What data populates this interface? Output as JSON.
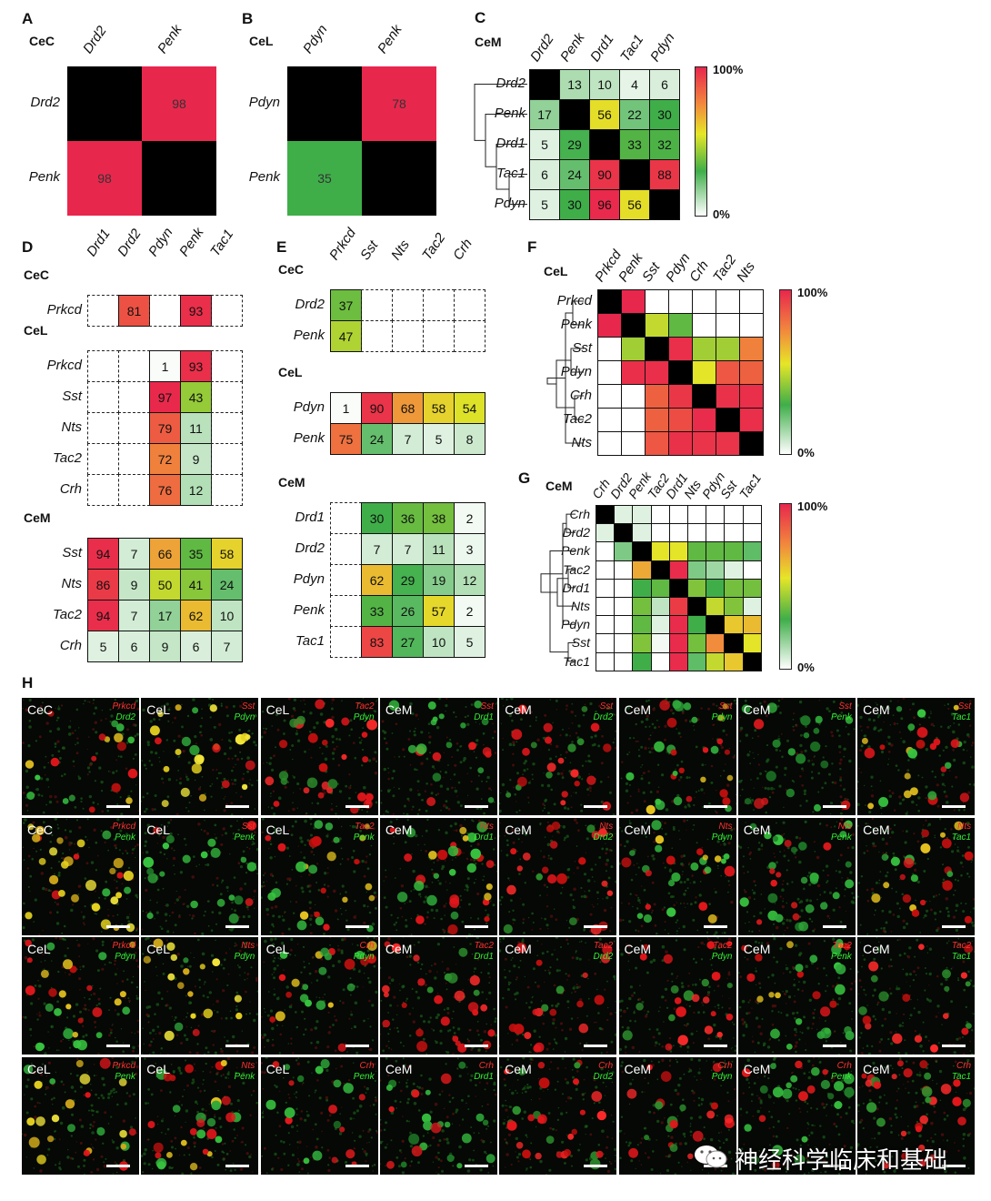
{
  "panels": {
    "A": {
      "label": "A",
      "region": "CeC",
      "genes": [
        "Drd2",
        "Penk"
      ],
      "matrix": [
        [
          null,
          98
        ],
        [
          98,
          null
        ]
      ]
    },
    "B": {
      "label": "B",
      "region": "CeL",
      "genes": [
        "Pdyn",
        "Penk"
      ],
      "matrix": [
        [
          null,
          78
        ],
        [
          35,
          null
        ]
      ]
    },
    "C": {
      "label": "C",
      "region": "CeM",
      "genes": [
        "Drd2",
        "Penk",
        "Drd1",
        "Tac1",
        "Pdyn"
      ],
      "matrix": [
        [
          null,
          13,
          10,
          4,
          6
        ],
        [
          17,
          null,
          56,
          22,
          30
        ],
        [
          5,
          29,
          null,
          33,
          32
        ],
        [
          6,
          24,
          90,
          null,
          88
        ],
        [
          5,
          30,
          96,
          56,
          null
        ]
      ]
    },
    "D": {
      "label": "D",
      "cols": [
        "Drd1",
        "Drd2",
        "Pdyn",
        "Penk",
        "Tac1"
      ],
      "groups": [
        {
          "region": "CeC",
          "rows": [
            "Prkcd"
          ],
          "values": [
            [
              null,
              81,
              null,
              93,
              null
            ]
          ],
          "dashed": true
        },
        {
          "region": "CeL",
          "rows": [
            "Prkcd",
            "Sst",
            "Nts",
            "Tac2",
            "Crh"
          ],
          "values": [
            [
              null,
              null,
              1,
              93,
              null
            ],
            [
              null,
              null,
              97,
              43,
              null
            ],
            [
              null,
              null,
              79,
              11,
              null
            ],
            [
              null,
              null,
              72,
              9,
              null
            ],
            [
              null,
              null,
              76,
              12,
              null
            ]
          ],
          "dashed": true
        },
        {
          "region": "CeM",
          "rows": [
            "Sst",
            "Nts",
            "Tac2",
            "Crh"
          ],
          "values": [
            [
              94,
              7,
              66,
              35,
              58
            ],
            [
              86,
              9,
              50,
              41,
              24
            ],
            [
              94,
              7,
              17,
              62,
              10
            ],
            [
              5,
              6,
              9,
              6,
              7
            ]
          ],
          "dashed": false
        }
      ]
    },
    "E": {
      "label": "E",
      "cols": [
        "Prkcd",
        "Sst",
        "Nts",
        "Tac2",
        "Crh"
      ],
      "groups": [
        {
          "region": "CeC",
          "rows": [
            "Drd2",
            "Penk"
          ],
          "values": [
            [
              37,
              null,
              null,
              null,
              null
            ],
            [
              47,
              null,
              null,
              null,
              null
            ]
          ],
          "dashed": true
        },
        {
          "region": "CeL",
          "rows": [
            "Pdyn",
            "Penk"
          ],
          "values": [
            [
              1,
              90,
              68,
              58,
              54
            ],
            [
              75,
              24,
              7,
              5,
              8
            ]
          ],
          "dashed": false
        },
        {
          "region": "CeM",
          "rows": [
            "Drd1",
            "Drd2",
            "Pdyn",
            "Penk",
            "Tac1"
          ],
          "values": [
            [
              null,
              30,
              36,
              38,
              2
            ],
            [
              null,
              7,
              7,
              11,
              3
            ],
            [
              null,
              62,
              29,
              19,
              12
            ],
            [
              null,
              33,
              26,
              57,
              2
            ],
            [
              null,
              83,
              27,
              10,
              5
            ]
          ],
          "dashed": true
        }
      ]
    },
    "F": {
      "label": "F",
      "region": "CeL",
      "genes": [
        "Prkcd",
        "Penk",
        "Sst",
        "Pdyn",
        "Crh",
        "Tac2",
        "Nts"
      ],
      "matrix": [
        [
          null,
          98,
          0,
          0,
          0,
          0,
          0
        ],
        [
          98,
          null,
          50,
          35,
          0,
          0,
          0
        ],
        [
          0,
          45,
          null,
          93,
          45,
          45,
          72
        ],
        [
          0,
          93,
          93,
          null,
          55,
          80,
          78
        ],
        [
          0,
          0,
          78,
          88,
          null,
          92,
          93
        ],
        [
          0,
          0,
          78,
          82,
          95,
          null,
          93
        ],
        [
          0,
          0,
          80,
          92,
          90,
          90,
          null
        ]
      ]
    },
    "G": {
      "label": "G",
      "region": "CeM",
      "genes": [
        "Crh",
        "Drd2",
        "Penk",
        "Tac2",
        "Drd1",
        "Nts",
        "Pdyn",
        "Sst",
        "Tac1"
      ],
      "matrix": [
        [
          null,
          5,
          5,
          0,
          0,
          0,
          0,
          0,
          0
        ],
        [
          5,
          null,
          5,
          0,
          0,
          0,
          0,
          0,
          0
        ],
        [
          0,
          20,
          null,
          55,
          55,
          35,
          35,
          35,
          25
        ],
        [
          0,
          0,
          65,
          null,
          95,
          20,
          15,
          5,
          0
        ],
        [
          0,
          0,
          30,
          35,
          null,
          40,
          30,
          38,
          38
        ],
        [
          0,
          0,
          38,
          10,
          85,
          null,
          50,
          40,
          5
        ],
        [
          0,
          0,
          35,
          5,
          95,
          30,
          null,
          60,
          62
        ],
        [
          0,
          0,
          40,
          2,
          95,
          38,
          70,
          null,
          55
        ],
        [
          0,
          0,
          30,
          0,
          95,
          25,
          50,
          60,
          null
        ]
      ]
    }
  },
  "colorbar": {
    "max_label": "100%",
    "min_label": "0%"
  },
  "panel_H": {
    "label": "H",
    "tiles": [
      {
        "region": "CeC",
        "m1": "Prkcd",
        "m2": "Drd2",
        "tone": "mixed"
      },
      {
        "region": "CeL",
        "m1": "Sst",
        "m2": "Pdyn",
        "tone": "yellow"
      },
      {
        "region": "CeL",
        "m1": "Tac2",
        "m2": "Pdyn",
        "tone": "red"
      },
      {
        "region": "CeM",
        "m1": "Sst",
        "m2": "Drd1",
        "tone": "green"
      },
      {
        "region": "CeM",
        "m1": "Sst",
        "m2": "Drd2",
        "tone": "red"
      },
      {
        "region": "CeM",
        "m1": "Sst",
        "m2": "Pdyn",
        "tone": "mixed"
      },
      {
        "region": "CeM",
        "m1": "Sst",
        "m2": "Penk",
        "tone": "green"
      },
      {
        "region": "CeM",
        "m1": "Sst",
        "m2": "Tac1",
        "tone": "mixed"
      },
      {
        "region": "CeC",
        "m1": "Prkcd",
        "m2": "Penk",
        "tone": "yellow"
      },
      {
        "region": "CeL",
        "m1": "Sst",
        "m2": "Penk",
        "tone": "green"
      },
      {
        "region": "CeL",
        "m1": "Tac2",
        "m2": "Penk",
        "tone": "mixed"
      },
      {
        "region": "CeM",
        "m1": "Nts",
        "m2": "Drd1",
        "tone": "mixed"
      },
      {
        "region": "CeM",
        "m1": "Nts",
        "m2": "Drd2",
        "tone": "red"
      },
      {
        "region": "CeM",
        "m1": "Nts",
        "m2": "Pdyn",
        "tone": "mixed"
      },
      {
        "region": "CeM",
        "m1": "Nts",
        "m2": "Penk",
        "tone": "green"
      },
      {
        "region": "CeM",
        "m1": "Nts",
        "m2": "Tac1",
        "tone": "mixed"
      },
      {
        "region": "CeL",
        "m1": "Prkcd",
        "m2": "Pdyn",
        "tone": "mixed"
      },
      {
        "region": "CeL",
        "m1": "Nts",
        "m2": "Pdyn",
        "tone": "yellow"
      },
      {
        "region": "CeL",
        "m1": "Crh",
        "m2": "Pdyn",
        "tone": "mixed"
      },
      {
        "region": "CeM",
        "m1": "Tac2",
        "m2": "Drd1",
        "tone": "red"
      },
      {
        "region": "CeM",
        "m1": "Tac2",
        "m2": "Drd2",
        "tone": "red"
      },
      {
        "region": "CeM",
        "m1": "Tac2",
        "m2": "Pdyn",
        "tone": "red"
      },
      {
        "region": "CeM",
        "m1": "Tac2",
        "m2": "Penk",
        "tone": "mixed"
      },
      {
        "region": "CeM",
        "m1": "Tac2",
        "m2": "Tac1",
        "tone": "red"
      },
      {
        "region": "CeL",
        "m1": "Prkcd",
        "m2": "Penk",
        "tone": "yellow"
      },
      {
        "region": "CeL",
        "m1": "Nts",
        "m2": "Penk",
        "tone": "mixed"
      },
      {
        "region": "CeL",
        "m1": "Crh",
        "m2": "Penk",
        "tone": "green"
      },
      {
        "region": "CeM",
        "m1": "Crh",
        "m2": "Drd1",
        "tone": "green"
      },
      {
        "region": "CeM",
        "m1": "Crh",
        "m2": "Drd2",
        "tone": "red"
      },
      {
        "region": "CeM",
        "m1": "Crh",
        "m2": "Pdyn",
        "tone": "red"
      },
      {
        "region": "CeM",
        "m1": "Crh",
        "m2": "Penk",
        "tone": "green"
      },
      {
        "region": "CeM",
        "m1": "Crh",
        "m2": "Tac1",
        "tone": "red"
      }
    ]
  },
  "watermark": "神经科学临床和基础"
}
